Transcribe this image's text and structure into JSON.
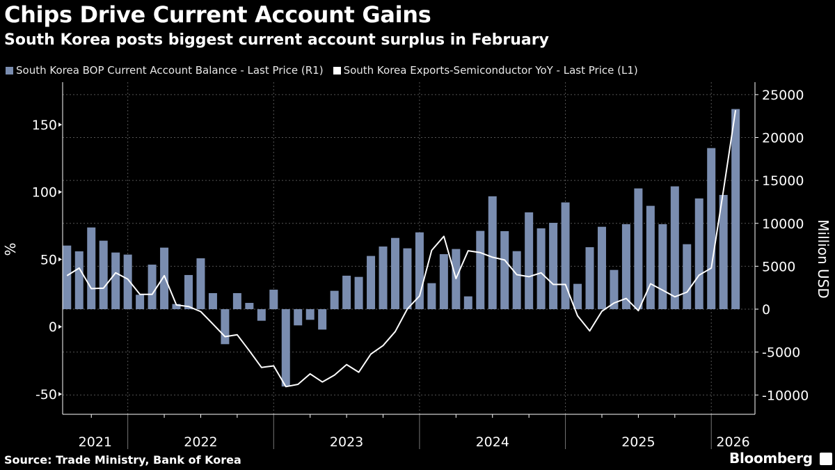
{
  "header": {
    "title": "Chips Drive Current Account Gains",
    "subtitle": "South Korea posts biggest current account surplus in February"
  },
  "footer": {
    "source": "Source: Trade Ministry, Bank of Korea",
    "brand": "Bloomberg"
  },
  "chart_data": {
    "type": "bar+line",
    "title": "Chips Drive Current Account Gains",
    "subtitle": "South Korea posts biggest current account surplus in February",
    "x": [
      "2021-07",
      "2021-08",
      "2021-09",
      "2021-10",
      "2021-11",
      "2021-12",
      "2022-01",
      "2022-02",
      "2022-03",
      "2022-04",
      "2022-05",
      "2022-06",
      "2022-07",
      "2022-08",
      "2022-09",
      "2022-10",
      "2022-11",
      "2022-12",
      "2023-01",
      "2023-02",
      "2023-03",
      "2023-04",
      "2023-05",
      "2023-06",
      "2023-07",
      "2023-08",
      "2023-09",
      "2023-10",
      "2023-11",
      "2023-12",
      "2024-01",
      "2024-02",
      "2024-03",
      "2024-04",
      "2024-05",
      "2024-06",
      "2024-07",
      "2024-08",
      "2024-09",
      "2024-10",
      "2024-11",
      "2024-12",
      "2025-01",
      "2025-02",
      "2025-03",
      "2025-04",
      "2025-05",
      "2025-06",
      "2025-07",
      "2025-08",
      "2025-09",
      "2025-10",
      "2025-11",
      "2025-12",
      "2026-01",
      "2026-02"
    ],
    "x_tick_labels": [
      "2021",
      "2022",
      "2023",
      "2024",
      "2025",
      "2026"
    ],
    "series": [
      {
        "name": "South Korea BOP Current Account Balance - Last Price (R1)",
        "type": "bar",
        "axis": "right",
        "color": "#7a8db0",
        "values": [
          7410,
          6740,
          9520,
          7980,
          6600,
          6360,
          1680,
          5190,
          7170,
          600,
          3980,
          5930,
          1870,
          -4080,
          1870,
          730,
          -1350,
          2270,
          -9010,
          -1890,
          -1240,
          -2380,
          2140,
          3900,
          3760,
          6200,
          7300,
          8300,
          7090,
          8950,
          3030,
          6410,
          7010,
          1490,
          9120,
          13150,
          9090,
          6760,
          11280,
          9420,
          10060,
          12440,
          2950,
          7220,
          9600,
          4570,
          9900,
          14070,
          12040,
          9900,
          14310,
          7570,
          12900,
          18770,
          13310,
          23320
        ]
      },
      {
        "name": "South Korea Exports-Semiconductor YoY - Last Price (L1)",
        "type": "line",
        "axis": "left",
        "color": "#ffffff",
        "values": [
          37.9,
          43.5,
          28.3,
          28.6,
          40.0,
          35.3,
          24.0,
          24.0,
          37.9,
          16.2,
          15.0,
          11.2,
          2.0,
          -7.4,
          -6.0,
          -17.8,
          -30.2,
          -29.1,
          -44.5,
          -42.8,
          -35.0,
          -41.0,
          -35.9,
          -28.1,
          -33.8,
          -20.3,
          -14.0,
          -3.6,
          13.3,
          22.8,
          56.7,
          67.1,
          35.7,
          56.4,
          55.0,
          51.6,
          49.5,
          38.6,
          37.1,
          40.0,
          31.4,
          31.4,
          8.1,
          -3.1,
          11.5,
          17.6,
          21.0,
          11.9,
          31.9,
          27.1,
          22.2,
          25.7,
          38.3,
          43.5,
          101.2,
          160.7
        ]
      }
    ],
    "left_axis": {
      "label": "%",
      "ticks": [
        -50,
        0,
        50,
        100,
        150
      ],
      "range": [
        -65,
        181.5
      ]
    },
    "right_axis": {
      "label": "Million USD",
      "ticks": [
        -10000,
        -5000,
        0,
        5000,
        10000,
        15000,
        20000,
        25000
      ],
      "range": [
        -12250,
        26450
      ]
    },
    "grid": true,
    "legend": "top-left"
  }
}
